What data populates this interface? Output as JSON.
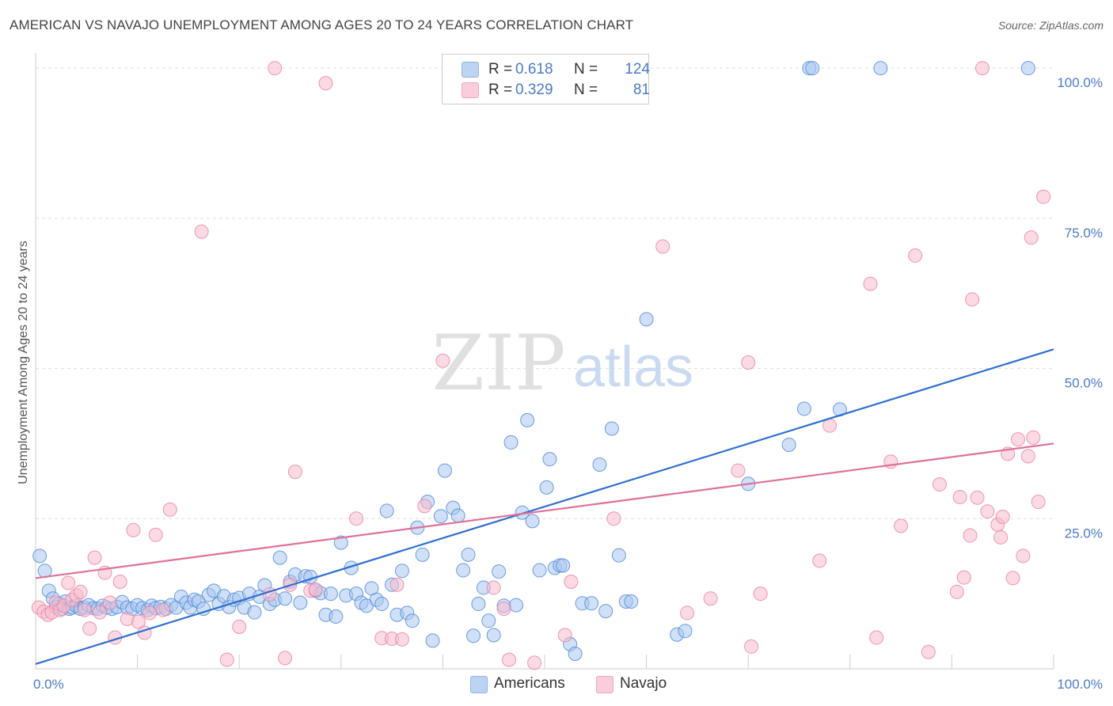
{
  "header": {
    "title": "AMERICAN VS NAVAJO UNEMPLOYMENT AMONG AGES 20 TO 24 YEARS CORRELATION CHART",
    "source": "Source: ZipAtlas.com"
  },
  "watermark": {
    "zip": "ZIP",
    "atlas": "atlas"
  },
  "legend": {
    "r_label": "R =",
    "n_label": "N =",
    "items": [
      {
        "r": "0.618",
        "n": "124",
        "color": "#8fb4e8"
      },
      {
        "r": "0.329",
        "n": "81",
        "color": "#f4a3bd"
      }
    ]
  },
  "bottom_legend": {
    "items": [
      {
        "label": "Americans",
        "color": "#8fb4e8"
      },
      {
        "label": "Navajo",
        "color": "#f4a3bd"
      }
    ]
  },
  "chart_data": {
    "type": "scatter",
    "title": "AMERICAN VS NAVAJO UNEMPLOYMENT AMONG AGES 20 TO 24 YEARS CORRELATION CHART",
    "xlabel": "",
    "ylabel": "Unemployment Among Ages 20 to 24 years",
    "xlim": [
      0,
      100
    ],
    "ylim": [
      0,
      102
    ],
    "x_tick_labels": [
      {
        "value": 0,
        "label": "0.0%"
      },
      {
        "value": 100,
        "label": "100.0%"
      }
    ],
    "y_tick_labels": [
      {
        "value": 25,
        "label": "25.0%"
      },
      {
        "value": 50,
        "label": "50.0%"
      },
      {
        "value": 75,
        "label": "75.0%"
      },
      {
        "value": 100,
        "label": "100.0%"
      }
    ],
    "grid": true,
    "legend_position": "top-center",
    "series": [
      {
        "name": "Americans",
        "color": "#4a86d8",
        "fill": "#a9c7ef",
        "trend": {
          "x": [
            0,
            100
          ],
          "y": [
            0.8,
            53.2
          ],
          "color": "#2f6fd0"
        },
        "points": [
          [
            0.4,
            18.8
          ],
          [
            0.9,
            16.3
          ],
          [
            1.3,
            13.0
          ],
          [
            1.7,
            11.7
          ],
          [
            2.0,
            10.3
          ],
          [
            2.3,
            10.8
          ],
          [
            2.6,
            10.0
          ],
          [
            2.9,
            11.2
          ],
          [
            3.3,
            10.0
          ],
          [
            3.6,
            10.2
          ],
          [
            4.0,
            10.5
          ],
          [
            4.4,
            10.0
          ],
          [
            4.8,
            10.2
          ],
          [
            5.2,
            10.6
          ],
          [
            5.7,
            10.1
          ],
          [
            6.1,
            10.0
          ],
          [
            6.6,
            10.5
          ],
          [
            7.0,
            10.2
          ],
          [
            7.5,
            10.0
          ],
          [
            8.0,
            10.3
          ],
          [
            8.5,
            11.1
          ],
          [
            9.0,
            10.2
          ],
          [
            9.5,
            10.0
          ],
          [
            10.0,
            10.6
          ],
          [
            10.5,
            10.1
          ],
          [
            11.0,
            9.8
          ],
          [
            11.4,
            10.5
          ],
          [
            11.8,
            10.1
          ],
          [
            12.3,
            10.3
          ],
          [
            12.8,
            10.0
          ],
          [
            13.3,
            10.6
          ],
          [
            13.8,
            10.2
          ],
          [
            14.3,
            12.0
          ],
          [
            14.8,
            11.0
          ],
          [
            15.2,
            10.2
          ],
          [
            15.6,
            11.5
          ],
          [
            16.0,
            11.2
          ],
          [
            16.5,
            10.0
          ],
          [
            17.0,
            12.3
          ],
          [
            17.5,
            13.0
          ],
          [
            18.0,
            10.8
          ],
          [
            18.5,
            12.1
          ],
          [
            19.0,
            10.3
          ],
          [
            19.5,
            11.5
          ],
          [
            20.0,
            11.8
          ],
          [
            20.5,
            10.2
          ],
          [
            21.0,
            12.5
          ],
          [
            21.5,
            9.4
          ],
          [
            22.0,
            12.0
          ],
          [
            22.5,
            13.9
          ],
          [
            23.0,
            10.8
          ],
          [
            23.5,
            11.5
          ],
          [
            24.0,
            18.5
          ],
          [
            24.5,
            11.7
          ],
          [
            25.0,
            14.5
          ],
          [
            25.5,
            15.7
          ],
          [
            26.0,
            11.0
          ],
          [
            26.5,
            15.4
          ],
          [
            27.0,
            15.3
          ],
          [
            27.5,
            13.0
          ],
          [
            28.0,
            12.6
          ],
          [
            28.5,
            9.0
          ],
          [
            29.0,
            12.5
          ],
          [
            29.5,
            8.7
          ],
          [
            30.0,
            21.0
          ],
          [
            30.5,
            12.2
          ],
          [
            31.0,
            16.8
          ],
          [
            31.5,
            12.5
          ],
          [
            32.0,
            11.0
          ],
          [
            32.5,
            10.5
          ],
          [
            33.0,
            13.4
          ],
          [
            33.5,
            11.5
          ],
          [
            34.0,
            10.8
          ],
          [
            34.5,
            26.3
          ],
          [
            35.0,
            14.0
          ],
          [
            35.5,
            9.0
          ],
          [
            36.0,
            16.3
          ],
          [
            36.5,
            9.3
          ],
          [
            37.0,
            8.0
          ],
          [
            37.5,
            23.5
          ],
          [
            38.0,
            19.0
          ],
          [
            38.5,
            27.8
          ],
          [
            39.0,
            4.7
          ],
          [
            39.8,
            25.4
          ],
          [
            40.2,
            33.0
          ],
          [
            41.0,
            26.8
          ],
          [
            41.5,
            25.5
          ],
          [
            42.0,
            16.4
          ],
          [
            42.5,
            19.0
          ],
          [
            43.0,
            5.5
          ],
          [
            43.5,
            10.8
          ],
          [
            44.0,
            13.5
          ],
          [
            44.5,
            8.0
          ],
          [
            45.0,
            5.6
          ],
          [
            45.5,
            16.2
          ],
          [
            46.0,
            10.5
          ],
          [
            46.7,
            37.7
          ],
          [
            47.2,
            10.6
          ],
          [
            47.8,
            26.0
          ],
          [
            48.3,
            41.4
          ],
          [
            48.8,
            24.6
          ],
          [
            49.5,
            16.4
          ],
          [
            50.2,
            30.2
          ],
          [
            50.5,
            34.9
          ],
          [
            51.0,
            16.8
          ],
          [
            51.5,
            17.2
          ],
          [
            51.8,
            17.2
          ],
          [
            52.5,
            4.1
          ],
          [
            53.0,
            2.5
          ],
          [
            53.7,
            10.9
          ],
          [
            54.6,
            10.9
          ],
          [
            55.4,
            34.0
          ],
          [
            56.0,
            9.6
          ],
          [
            56.6,
            40.0
          ],
          [
            57.3,
            18.9
          ],
          [
            58.0,
            11.2
          ],
          [
            58.5,
            11.2
          ],
          [
            60.0,
            58.2
          ],
          [
            63.0,
            5.7
          ],
          [
            63.8,
            6.3
          ],
          [
            70.0,
            30.8
          ],
          [
            74.0,
            37.3
          ],
          [
            75.5,
            43.3
          ],
          [
            79.0,
            43.2
          ],
          [
            76.0,
            100
          ],
          [
            76.3,
            100
          ],
          [
            83.0,
            100
          ],
          [
            97.5,
            100
          ]
        ]
      },
      {
        "name": "Navajo",
        "color": "#e87fa0",
        "fill": "#f7bccd",
        "trend": {
          "x": [
            0,
            100
          ],
          "y": [
            15.1,
            37.5
          ],
          "color": "#e0709a"
        },
        "points": [
          [
            0.3,
            10.2
          ],
          [
            0.8,
            9.5
          ],
          [
            1.2,
            9.0
          ],
          [
            1.6,
            9.4
          ],
          [
            2.0,
            11.0
          ],
          [
            2.4,
            9.8
          ],
          [
            2.8,
            10.5
          ],
          [
            3.2,
            14.3
          ],
          [
            3.6,
            11.5
          ],
          [
            4.0,
            12.2
          ],
          [
            4.4,
            12.8
          ],
          [
            4.8,
            9.8
          ],
          [
            5.3,
            6.7
          ],
          [
            5.8,
            18.5
          ],
          [
            6.3,
            9.4
          ],
          [
            6.8,
            16.0
          ],
          [
            7.3,
            11.0
          ],
          [
            7.8,
            5.2
          ],
          [
            8.3,
            14.5
          ],
          [
            9.0,
            8.3
          ],
          [
            9.6,
            23.1
          ],
          [
            10.1,
            7.8
          ],
          [
            10.7,
            6.0
          ],
          [
            11.2,
            9.3
          ],
          [
            11.8,
            22.3
          ],
          [
            12.5,
            9.8
          ],
          [
            13.2,
            26.5
          ],
          [
            16.3,
            72.8
          ],
          [
            18.8,
            1.5
          ],
          [
            20.0,
            7.0
          ],
          [
            23.0,
            12.4
          ],
          [
            23.5,
            100
          ],
          [
            24.5,
            1.8
          ],
          [
            25.0,
            14.0
          ],
          [
            25.5,
            32.8
          ],
          [
            27.0,
            13.0
          ],
          [
            27.5,
            13.2
          ],
          [
            28.5,
            97.5
          ],
          [
            31.5,
            25.0
          ],
          [
            34.0,
            5.1
          ],
          [
            35.0,
            5.0
          ],
          [
            35.5,
            14.0
          ],
          [
            36.0,
            4.9
          ],
          [
            38.2,
            27.1
          ],
          [
            40.0,
            51.3
          ],
          [
            45.0,
            13.5
          ],
          [
            46.0,
            10.0
          ],
          [
            46.5,
            1.5
          ],
          [
            49.0,
            1.0
          ],
          [
            52.0,
            5.6
          ],
          [
            52.6,
            14.5
          ],
          [
            55.0,
            100
          ],
          [
            56.8,
            25.0
          ],
          [
            61.6,
            70.3
          ],
          [
            64.0,
            9.3
          ],
          [
            66.3,
            11.7
          ],
          [
            69.0,
            33.0
          ],
          [
            70.0,
            51.0
          ],
          [
            70.3,
            3.7
          ],
          [
            71.2,
            12.5
          ],
          [
            77.0,
            18.0
          ],
          [
            78.0,
            40.5
          ],
          [
            82.0,
            64.1
          ],
          [
            82.6,
            5.2
          ],
          [
            84.0,
            34.5
          ],
          [
            85.0,
            23.8
          ],
          [
            86.4,
            68.8
          ],
          [
            87.7,
            2.8
          ],
          [
            88.8,
            30.7
          ],
          [
            90.5,
            12.8
          ],
          [
            90.8,
            28.6
          ],
          [
            91.2,
            15.2
          ],
          [
            91.8,
            22.2
          ],
          [
            92.0,
            61.5
          ],
          [
            92.5,
            28.5
          ],
          [
            93.0,
            100
          ],
          [
            93.5,
            26.2
          ],
          [
            94.5,
            24.0
          ],
          [
            94.8,
            21.9
          ],
          [
            95.0,
            25.3
          ],
          [
            95.5,
            35.8
          ],
          [
            96.0,
            15.1
          ],
          [
            96.5,
            38.2
          ],
          [
            97.0,
            18.8
          ],
          [
            97.5,
            35.4
          ],
          [
            97.8,
            71.8
          ],
          [
            98.0,
            38.5
          ],
          [
            98.5,
            27.8
          ],
          [
            99.0,
            78.6
          ]
        ]
      }
    ]
  }
}
